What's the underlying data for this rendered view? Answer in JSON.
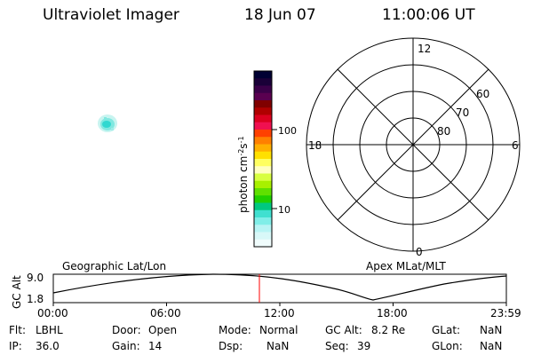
{
  "header": {
    "instrument": "Ultraviolet Imager",
    "date": "18 Jun 07",
    "time": "11:00:06 UT"
  },
  "colorbar": {
    "label_main": "photon cm",
    "label_exp1": "-2",
    "label_mid": "s",
    "label_exp2": "-1",
    "tick_100": "100",
    "tick_10": "10",
    "colors_top_to_bottom": [
      "#000033",
      "#1a0038",
      "#3a0048",
      "#5a0050",
      "#800000",
      "#b00000",
      "#dc0020",
      "#f01050",
      "#ff4000",
      "#ff8000",
      "#ffb000",
      "#ffe000",
      "#ffff60",
      "#ffffc0",
      "#d8ff40",
      "#a8f000",
      "#60e000",
      "#20d000",
      "#00c880",
      "#40e0d0",
      "#80eee8",
      "#b8f4f4",
      "#d8f8f8",
      "#f0fcfc"
    ]
  },
  "polar": {
    "mlt_12": "12",
    "mlt_18": "18",
    "mlt_6": "6",
    "mlt_0": "0",
    "lat_60": "60",
    "lat_70": "70",
    "lat_80": "80"
  },
  "orbit": {
    "geo_label": "Geographic Lat/Lon",
    "apex_label": "Apex MLat/MLT",
    "yaxis_label": "GC Alt",
    "ytick_top": "9.0",
    "ytick_bottom": "1.8",
    "xticks": [
      "00:00",
      "06:00",
      "12:00",
      "18:00",
      "23:59"
    ],
    "current_time_color": "#ff0000"
  },
  "info": {
    "flt_label": "Flt:",
    "flt_value": "LBHL",
    "ip_label": "IP:",
    "ip_value": "36.0",
    "door_label": "Door:",
    "door_value": "Open",
    "gain_label": "Gain:",
    "gain_value": "14",
    "mode_label": "Mode:",
    "mode_value": "Normal",
    "dsp_label": "Dsp:",
    "dsp_value": "NaN",
    "gcalt_label": "GC Alt:",
    "gcalt_value": "8.2 Re",
    "seq_label": "Seq:",
    "seq_value": "39",
    "glat_label": "GLat:",
    "glat_value": "NaN",
    "glon_label": "GLon:",
    "glon_value": "NaN"
  }
}
